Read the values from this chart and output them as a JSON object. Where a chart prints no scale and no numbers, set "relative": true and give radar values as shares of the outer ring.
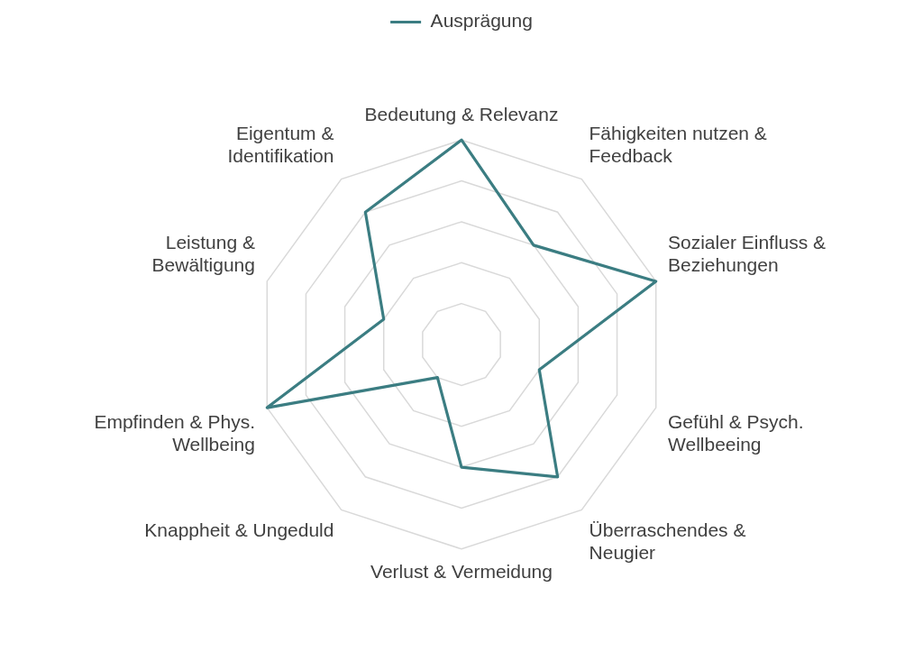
{
  "chart_data": {
    "type": "radar",
    "relative": true,
    "categories": [
      "Bedeutung & Relevanz",
      "Fähigkeiten nutzen & Feedback",
      "Sozialer Einfluss & Beziehungen",
      "Gefühl & Psych. Wellbeeing",
      "Überraschendes & Neugier",
      "Verlust & Vermeidung",
      "Knappheit & Ungeduld",
      "Empfinden & Phys. Wellbeing",
      "Leistung & Bewältigung",
      "Eigentum & Identifikation"
    ],
    "series": [
      {
        "name": "Ausprägung",
        "color": "#3b7d82",
        "values": [
          1,
          0.6,
          1,
          0.4,
          0.8,
          0.6,
          0.2,
          1,
          0.4,
          0.8
        ]
      }
    ],
    "grid": true,
    "legend": "top"
  }
}
